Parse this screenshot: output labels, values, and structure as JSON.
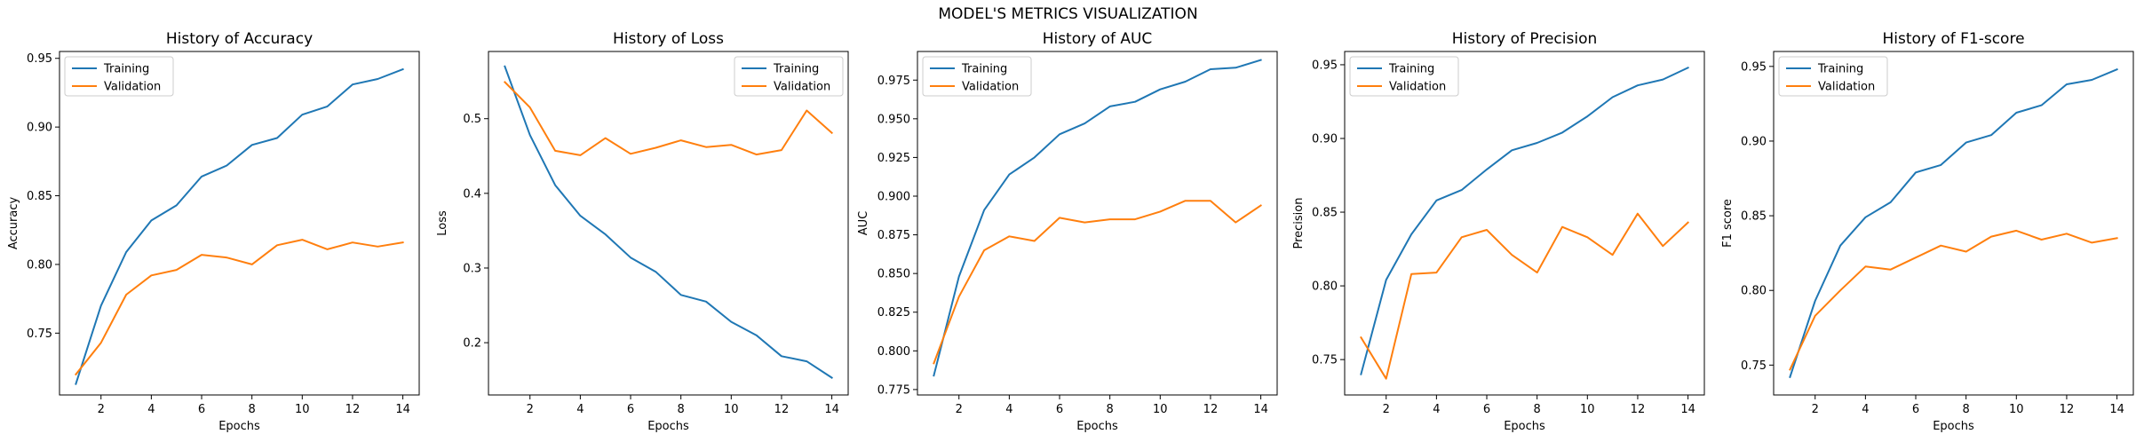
{
  "suptitle": "MODEL'S METRICS VISUALIZATION",
  "colors": {
    "training": "#1f77b4",
    "validation": "#ff7f0e"
  },
  "chart_data": [
    {
      "type": "line",
      "title": "History of Accuracy",
      "xlabel": "Epochs",
      "ylabel": "Accuracy",
      "x": [
        1,
        2,
        3,
        4,
        5,
        6,
        7,
        8,
        9,
        10,
        11,
        12,
        13,
        14
      ],
      "xticks": [
        2,
        4,
        6,
        8,
        10,
        12,
        14
      ],
      "ylim": [
        0.705,
        0.955
      ],
      "yticks": [
        0.75,
        0.8,
        0.85,
        0.9,
        0.95
      ],
      "ytick_labels": [
        "0.75",
        "0.80",
        "0.85",
        "0.90",
        "0.95"
      ],
      "legend": "top-left",
      "series": [
        {
          "name": "Training",
          "values": [
            0.713,
            0.77,
            0.809,
            0.832,
            0.843,
            0.864,
            0.872,
            0.887,
            0.892,
            0.909,
            0.915,
            0.931,
            0.935,
            0.942
          ]
        },
        {
          "name": "Validation",
          "values": [
            0.72,
            0.743,
            0.778,
            0.792,
            0.796,
            0.807,
            0.805,
            0.8,
            0.814,
            0.818,
            0.811,
            0.816,
            0.813,
            0.816
          ]
        }
      ]
    },
    {
      "type": "line",
      "title": "History of Loss",
      "xlabel": "Epochs",
      "ylabel": "Loss",
      "x": [
        1,
        2,
        3,
        4,
        5,
        6,
        7,
        8,
        9,
        10,
        11,
        12,
        13,
        14
      ],
      "xticks": [
        2,
        4,
        6,
        8,
        10,
        12,
        14
      ],
      "ylim": [
        0.13,
        0.59
      ],
      "yticks": [
        0.2,
        0.3,
        0.4,
        0.5
      ],
      "ytick_labels": [
        "0.2",
        "0.3",
        "0.4",
        "0.5"
      ],
      "legend": "top-right",
      "series": [
        {
          "name": "Training",
          "values": [
            0.57,
            0.478,
            0.411,
            0.37,
            0.345,
            0.314,
            0.295,
            0.264,
            0.255,
            0.228,
            0.21,
            0.182,
            0.175,
            0.153
          ]
        },
        {
          "name": "Validation",
          "values": [
            0.549,
            0.515,
            0.457,
            0.451,
            0.474,
            0.453,
            0.461,
            0.471,
            0.462,
            0.465,
            0.452,
            0.458,
            0.511,
            0.481
          ]
        }
      ]
    },
    {
      "type": "line",
      "title": "History of AUC",
      "xlabel": "Epochs",
      "ylabel": "AUC",
      "x": [
        1,
        2,
        3,
        4,
        5,
        6,
        7,
        8,
        9,
        10,
        11,
        12,
        13,
        14
      ],
      "xticks": [
        2,
        4,
        6,
        8,
        10,
        12,
        14
      ],
      "ylim": [
        0.7715,
        0.9935
      ],
      "yticks": [
        0.775,
        0.8,
        0.825,
        0.85,
        0.875,
        0.9,
        0.925,
        0.95,
        0.975
      ],
      "ytick_labels": [
        "0.775",
        "0.800",
        "0.825",
        "0.850",
        "0.875",
        "0.900",
        "0.925",
        "0.950",
        "0.975"
      ],
      "legend": "top-left",
      "series": [
        {
          "name": "Training",
          "values": [
            0.784,
            0.848,
            0.891,
            0.914,
            0.925,
            0.94,
            0.947,
            0.958,
            0.961,
            0.969,
            0.974,
            0.982,
            0.983,
            0.988
          ]
        },
        {
          "name": "Validation",
          "values": [
            0.792,
            0.835,
            0.865,
            0.874,
            0.871,
            0.886,
            0.883,
            0.885,
            0.885,
            0.89,
            0.897,
            0.897,
            0.883,
            0.894
          ]
        }
      ]
    },
    {
      "type": "line",
      "title": "History of Precision",
      "xlabel": "Epochs",
      "ylabel": "Precision",
      "x": [
        1,
        2,
        3,
        4,
        5,
        6,
        7,
        8,
        9,
        10,
        11,
        12,
        13,
        14
      ],
      "xticks": [
        2,
        4,
        6,
        8,
        10,
        12,
        14
      ],
      "ylim": [
        0.726,
        0.959
      ],
      "yticks": [
        0.75,
        0.8,
        0.85,
        0.9,
        0.95
      ],
      "ytick_labels": [
        "0.75",
        "0.80",
        "0.85",
        "0.90",
        "0.95"
      ],
      "legend": "top-left",
      "series": [
        {
          "name": "Training",
          "values": [
            0.74,
            0.804,
            0.835,
            0.858,
            0.865,
            0.879,
            0.892,
            0.897,
            0.904,
            0.915,
            0.928,
            0.936,
            0.94,
            0.948
          ]
        },
        {
          "name": "Validation",
          "values": [
            0.765,
            0.737,
            0.808,
            0.809,
            0.833,
            0.838,
            0.821,
            0.809,
            0.84,
            0.833,
            0.821,
            0.849,
            0.827,
            0.843
          ]
        }
      ]
    },
    {
      "type": "line",
      "title": "History of F1-score",
      "xlabel": "Epochs",
      "ylabel": "F1 score",
      "x": [
        1,
        2,
        3,
        4,
        5,
        6,
        7,
        8,
        9,
        10,
        11,
        12,
        13,
        14
      ],
      "xticks": [
        2,
        4,
        6,
        8,
        10,
        12,
        14
      ],
      "ylim": [
        0.73,
        0.96
      ],
      "yticks": [
        0.75,
        0.8,
        0.85,
        0.9,
        0.95
      ],
      "ytick_labels": [
        "0.75",
        "0.80",
        "0.85",
        "0.90",
        "0.95"
      ],
      "legend": "top-left",
      "series": [
        {
          "name": "Training",
          "values": [
            0.742,
            0.793,
            0.83,
            0.849,
            0.859,
            0.879,
            0.884,
            0.899,
            0.904,
            0.919,
            0.924,
            0.938,
            0.941,
            0.948
          ]
        },
        {
          "name": "Validation",
          "values": [
            0.747,
            0.783,
            0.8,
            0.816,
            0.814,
            0.822,
            0.83,
            0.826,
            0.836,
            0.84,
            0.834,
            0.838,
            0.832,
            0.835
          ]
        }
      ]
    }
  ]
}
